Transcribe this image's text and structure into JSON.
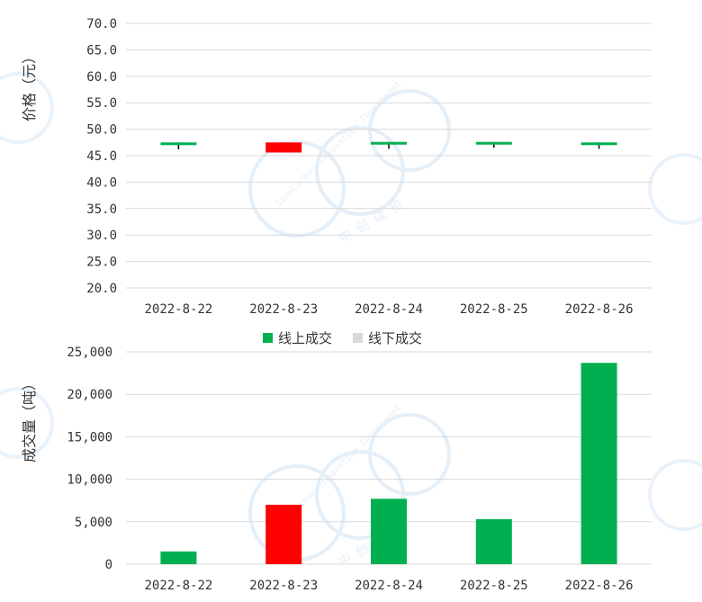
{
  "colors": {
    "up": "#00b050",
    "down": "#ff0000",
    "offline": "#d9d9d9",
    "grid": "#d9d9d9",
    "watermark": "#cfe3f3"
  },
  "watermark": {
    "text_en": "SinoCarbon Innovation Investment",
    "text_cn": "中创碳投"
  },
  "chart_data": [
    {
      "type": "candlestick",
      "ylabel": "价格（元）",
      "ylim": [
        20,
        70
      ],
      "yticks": [
        "70.0",
        "65.0",
        "60.0",
        "55.0",
        "50.0",
        "45.0",
        "40.0",
        "35.0",
        "30.0",
        "25.0",
        "20.0"
      ],
      "ytick_values": [
        70,
        65,
        60,
        55,
        50,
        45,
        40,
        35,
        30,
        25,
        20
      ],
      "categories": [
        "2022-8-22",
        "2022-8-23",
        "2022-8-24",
        "2022-8-25",
        "2022-8-26"
      ],
      "ohlc": [
        {
          "open": 47.0,
          "high": 47.5,
          "low": 46.2,
          "close": 47.5
        },
        {
          "open": 47.5,
          "high": 47.5,
          "low": 45.6,
          "close": 45.6
        },
        {
          "open": 47.3,
          "high": 47.6,
          "low": 46.3,
          "close": 47.6
        },
        {
          "open": 47.3,
          "high": 47.6,
          "low": 46.5,
          "close": 47.6
        },
        {
          "open": 47.0,
          "high": 47.5,
          "low": 46.3,
          "close": 47.5
        }
      ],
      "grid": true
    },
    {
      "type": "bar",
      "ylabel": "成交量（吨）",
      "ylim": [
        0,
        25000
      ],
      "yticks": [
        "25,000",
        "20,000",
        "15,000",
        "10,000",
        "5,000",
        "0"
      ],
      "ytick_values": [
        25000,
        20000,
        15000,
        10000,
        5000,
        0
      ],
      "categories": [
        "2022-8-22",
        "2022-8-23",
        "2022-8-24",
        "2022-8-25",
        "2022-8-26"
      ],
      "series": [
        {
          "name": "线上成交",
          "values": [
            1500,
            7000,
            7700,
            5300,
            23700
          ]
        },
        {
          "name": "线下成交",
          "values": [
            0,
            0,
            0,
            0,
            0
          ]
        }
      ],
      "bar_colors": [
        "up",
        "down",
        "up",
        "up",
        "up"
      ],
      "legend_position": "top",
      "grid": true
    }
  ]
}
